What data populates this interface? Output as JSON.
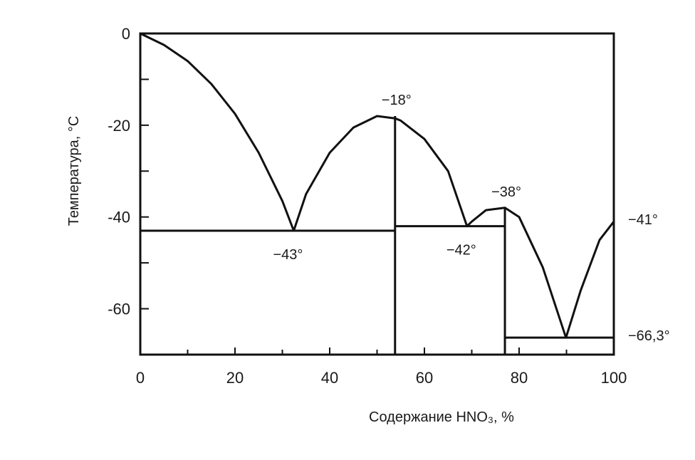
{
  "chart_data": {
    "type": "line",
    "xlabel": "Содержание HNO₃, %",
    "ylabel": "Температура, °C",
    "xlim": [
      0,
      100
    ],
    "ylim": [
      -70,
      0
    ],
    "x_ticks": [
      0,
      20,
      40,
      60,
      80,
      100
    ],
    "x_tick_labels": [
      "0",
      "20",
      "40",
      "60",
      "80",
      "100"
    ],
    "x_minor_ticks": [
      10,
      30,
      50,
      70,
      90
    ],
    "y_ticks": [
      0,
      -20,
      -40,
      -60
    ],
    "y_tick_labels": [
      "0",
      "-20",
      "-40",
      "-60"
    ],
    "y_minor_ticks": [
      -10,
      -30,
      -50
    ],
    "grid": false,
    "series": [
      {
        "values_xy": [
          [
            0,
            0
          ],
          [
            5,
            -2.5
          ],
          [
            10,
            -6
          ],
          [
            15,
            -11
          ],
          [
            20,
            -17.5
          ],
          [
            25,
            -26
          ],
          [
            30,
            -36.5
          ],
          [
            32.4,
            -43
          ],
          [
            35,
            -35
          ],
          [
            40,
            -26
          ],
          [
            45,
            -20.5
          ],
          [
            50,
            -18
          ],
          [
            53.8,
            -18.5
          ],
          [
            55,
            -19
          ],
          [
            60,
            -23
          ],
          [
            65,
            -30
          ],
          [
            69,
            -42
          ],
          [
            70,
            -41
          ],
          [
            73,
            -38.5
          ],
          [
            77,
            -38
          ],
          [
            80,
            -40
          ],
          [
            85,
            -51
          ],
          [
            89.9,
            -66.3
          ],
          [
            93,
            -56
          ],
          [
            97,
            -45
          ],
          [
            100,
            -41
          ]
        ]
      }
    ],
    "horizontal_lines": [
      {
        "y": -43,
        "x_from": 0,
        "x_to": 53.8
      },
      {
        "y": -42,
        "x_from": 53.8,
        "x_to": 77
      },
      {
        "y": -66.3,
        "x_from": 77,
        "x_to": 100
      }
    ],
    "vertical_lines": [
      {
        "x": 53.8,
        "y_from": -70,
        "y_to": -18
      },
      {
        "x": 77,
        "y_from": -70,
        "y_to": -38
      }
    ],
    "annotations": [
      {
        "text": "−18°",
        "x": 53.8,
        "y": -18,
        "anchor": "above"
      },
      {
        "text": "−43°",
        "x": 32.4,
        "y": -43,
        "anchor": "below"
      },
      {
        "text": "−42°",
        "x": 69,
        "y": -42,
        "anchor": "below"
      },
      {
        "text": "−38°",
        "x": 77,
        "y": -38,
        "anchor": "above"
      },
      {
        "text": "−41°",
        "x": 100,
        "y": -41,
        "anchor": "right"
      },
      {
        "text": "−66,3°",
        "x": 100,
        "y": -66.3,
        "anchor": "right"
      }
    ]
  }
}
